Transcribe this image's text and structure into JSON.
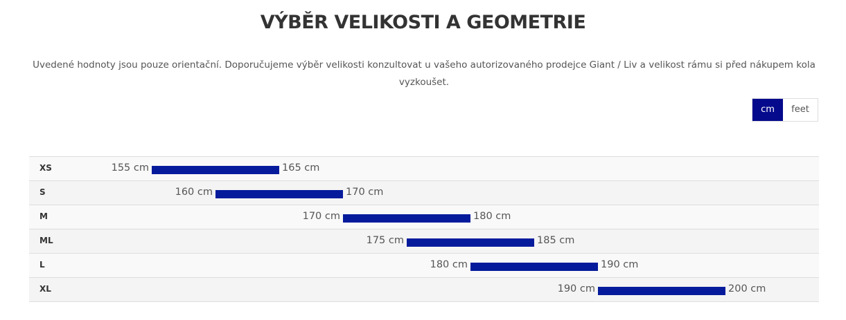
{
  "title": "VÝBĚR VELIKOSTI A GEOMETRIE",
  "intro": "Uvedené hodnoty jsou pouze orientační. Doporučujeme výběr velikosti konzultovat u vašeho autorizovaného prodejce Giant / Liv a velikost rámu si před nákupem kola vyzkoušet.",
  "units": {
    "cm": "cm",
    "feet": "feet",
    "selected": "cm"
  },
  "colors": {
    "bar": "#051b9c",
    "active_toggle": "#050a8c"
  },
  "chart_data": {
    "type": "bar",
    "orientation": "horizontal-range",
    "unit": "cm",
    "categories": [
      "XS",
      "S",
      "M",
      "ML",
      "L",
      "XL"
    ],
    "ranges": [
      {
        "size": "XS",
        "min": 155,
        "max": 165,
        "min_label": "155 cm",
        "max_label": "165 cm"
      },
      {
        "size": "S",
        "min": 160,
        "max": 170,
        "min_label": "160 cm",
        "max_label": "170 cm"
      },
      {
        "size": "M",
        "min": 170,
        "max": 180,
        "min_label": "170 cm",
        "max_label": "180 cm"
      },
      {
        "size": "ML",
        "min": 175,
        "max": 185,
        "min_label": "175 cm",
        "max_label": "185 cm"
      },
      {
        "size": "L",
        "min": 180,
        "max": 190,
        "min_label": "180 cm",
        "max_label": "190 cm"
      },
      {
        "size": "XL",
        "min": 190,
        "max": 200,
        "min_label": "190 cm",
        "max_label": "200 cm"
      }
    ]
  }
}
